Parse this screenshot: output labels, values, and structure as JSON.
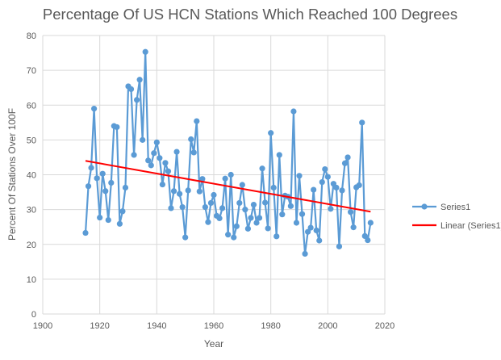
{
  "chart_data": {
    "type": "line",
    "title": "Percentage Of US HCN Stations Which Reached 100 Degrees",
    "xlabel": "Year",
    "ylabel": "Percent Of Stations Over 100F",
    "xlim": [
      1900,
      2020
    ],
    "ylim": [
      0,
      80
    ],
    "xticks": [
      1900,
      1920,
      1940,
      1960,
      1980,
      2000,
      2020
    ],
    "yticks": [
      0,
      10,
      20,
      30,
      40,
      50,
      60,
      70,
      80
    ],
    "grid": true,
    "legend_position": "right",
    "x_start": 1915,
    "series": [
      {
        "name": "Series1",
        "color": "#5B9BD5",
        "values": [
          23.3,
          36.7,
          42,
          59,
          39,
          27.7,
          40.3,
          35.3,
          27,
          37.7,
          54,
          53.7,
          25.9,
          29.5,
          36.3,
          65.4,
          64.6,
          45.7,
          61.5,
          67.3,
          50,
          75.3,
          44.1,
          42.7,
          46.2,
          49.3,
          44.8,
          37.2,
          43.4,
          41,
          30.4,
          35.3,
          46.6,
          34.5,
          30.7,
          22,
          35.5,
          50.2,
          46.4,
          55.4,
          35.2,
          38.8,
          30.7,
          26.4,
          31.9,
          34.2,
          28.2,
          27.5,
          30.4,
          38.9,
          22.8,
          40,
          22,
          25.2,
          31.9,
          37.1,
          30,
          24.5,
          27.6,
          31.4,
          26.2,
          27.6,
          41.8,
          32,
          24.6,
          52,
          36.3,
          22.3,
          45.7,
          28.6,
          34,
          33.7,
          31,
          58.2,
          26.2,
          39.7,
          28.7,
          17.3,
          23.6,
          24.8,
          35.7,
          24,
          21.1,
          37.9,
          41.6,
          39.4,
          30.2,
          37.4,
          36.3,
          19.4,
          35.5,
          43.3,
          45,
          29.3,
          24.9,
          36.4,
          37,
          55,
          22.4,
          21.2,
          26.2
        ]
      },
      {
        "name": "Linear (Series1)",
        "color": "#FF0000",
        "trend": {
          "x": [
            1915,
            2015
          ],
          "y": [
            44,
            29.4
          ]
        }
      }
    ]
  }
}
